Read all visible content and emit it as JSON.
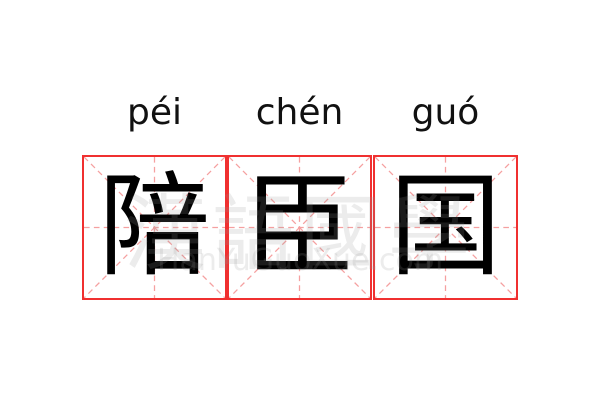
{
  "words": [
    {
      "pinyin": "péi",
      "char": "陪"
    },
    {
      "pinyin": "chén",
      "char": "臣"
    },
    {
      "pinyin": "guó",
      "char": "国"
    }
  ],
  "watermark": {
    "logo": "漢語國學",
    "site": "HanYuGuoXue.com"
  },
  "colors": {
    "border": "#f03030",
    "guide": "#f5a0a0",
    "text": "#000000"
  }
}
